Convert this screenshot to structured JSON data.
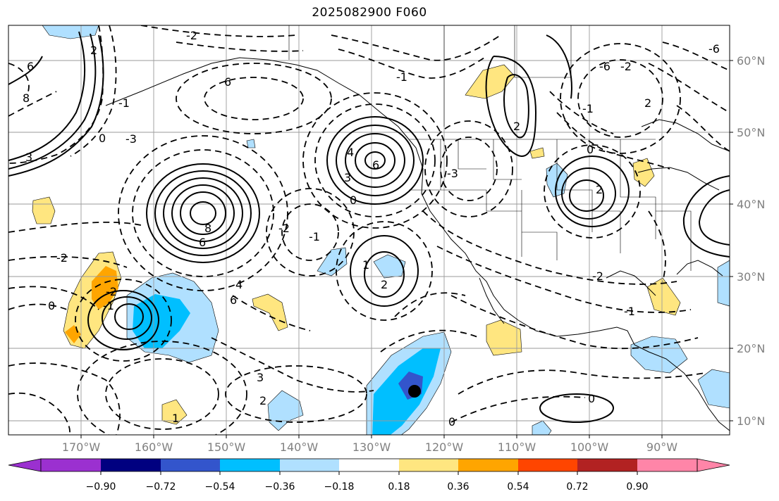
{
  "title": "2025082900 F060",
  "lat_labels": [
    "60°N",
    "50°N",
    "40°N",
    "30°N",
    "20°N",
    "10°N"
  ],
  "lon_labels": [
    "170°W",
    "160°W",
    "150°W",
    "140°W",
    "130°W",
    "120°W",
    "110°W",
    "100°W",
    "90°W"
  ],
  "colorbar": {
    "ticks": [
      "−0.90",
      "−0.72",
      "−0.54",
      "−0.36",
      "−0.18",
      "0.18",
      "0.36",
      "0.54",
      "0.72",
      "0.90"
    ],
    "colors": [
      "#9b30d0",
      "#000080",
      "#3355cc",
      "#00bfff",
      "#b0e0ff",
      "#ffffff",
      "#ffe680",
      "#ffa500",
      "#ff4500",
      "#b22222",
      "#ff85a8"
    ]
  },
  "fill_colors": {
    "light_blue": "#b0e0ff",
    "blue": "#00bfff",
    "dark_blue": "#3355cc",
    "yellow": "#ffe680",
    "orange": "#ffa500"
  },
  "contour_labels": [
    "6",
    "8",
    "-2",
    "2",
    "-1",
    "0",
    "3",
    "-3",
    "6",
    "8",
    "6",
    "-2",
    "-1",
    "4",
    "6",
    "3",
    "-3",
    "0",
    "2",
    "1",
    "2",
    "-6",
    "-2",
    "-1",
    "0",
    "2",
    "-2",
    "-1",
    "0",
    "-1",
    "-2",
    "4",
    "6",
    "3",
    "2",
    "1",
    "-1",
    "-2",
    "-6",
    "2",
    "0",
    "0"
  ]
}
